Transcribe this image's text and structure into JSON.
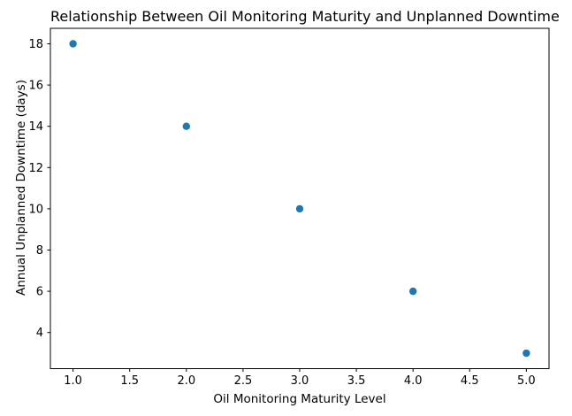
{
  "chart_data": {
    "type": "scatter",
    "title": "Relationship Between Oil Monitoring Maturity and Unplanned Downtime",
    "xlabel": "Oil Monitoring Maturity Level",
    "ylabel": "Annual Unplanned Downtime (days)",
    "x": [
      1,
      2,
      3,
      4,
      5
    ],
    "y": [
      18,
      14,
      10,
      6,
      3
    ],
    "xlim": [
      0.8,
      5.2
    ],
    "ylim": [
      2.25,
      18.75
    ],
    "xtick_values": [
      1.0,
      1.5,
      2.0,
      2.5,
      3.0,
      3.5,
      4.0,
      4.5,
      5.0
    ],
    "xtick_labels": [
      "1.0",
      "1.5",
      "2.0",
      "2.5",
      "3.0",
      "3.5",
      "4.0",
      "4.5",
      "5.0"
    ],
    "ytick_values": [
      4,
      6,
      8,
      10,
      12,
      14,
      16,
      18
    ],
    "ytick_labels": [
      "4",
      "6",
      "8",
      "10",
      "12",
      "14",
      "16",
      "18"
    ],
    "marker_color": "#1f77b4",
    "marker_radius": 4.2,
    "spine_color": "#000000",
    "background_color": "#ffffff",
    "grid": false,
    "legend": null
  }
}
